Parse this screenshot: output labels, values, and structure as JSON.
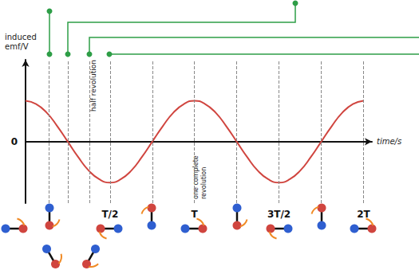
{
  "chart_data": {
    "type": "line",
    "x_label": "time/s",
    "y_label": "induced emf/V",
    "x": [
      0,
      0.0625,
      0.125,
      0.1875,
      0.25,
      0.3125,
      0.375,
      0.4375,
      0.5,
      0.5625,
      0.625,
      0.6875,
      0.75,
      0.8125,
      0.875,
      0.9375,
      1,
      1.0625,
      1.125,
      1.1875,
      1.25,
      1.3125,
      1.375,
      1.4375,
      1.5,
      1.5625,
      1.625,
      1.6875,
      1.75,
      1.8125,
      1.875,
      1.9375,
      2
    ],
    "values": [
      1,
      0.92,
      0.71,
      0.38,
      0,
      -0.38,
      -0.71,
      -0.92,
      -1,
      -0.92,
      -0.71,
      -0.38,
      0,
      0.38,
      0.71,
      0.92,
      1,
      0.92,
      0.71,
      0.38,
      0,
      -0.38,
      -0.71,
      -0.92,
      -1,
      -0.92,
      -0.71,
      -0.38,
      0,
      0.38,
      0.71,
      0.92,
      1
    ],
    "color": "#d0453f",
    "xlim": [
      0,
      2.05
    ],
    "xticks": [
      {
        "value": 0.5,
        "label": "T/2"
      },
      {
        "value": 1,
        "label": "T"
      },
      {
        "value": 1.5,
        "label": "3T/2"
      },
      {
        "value": 2,
        "label": "2T"
      }
    ],
    "ylim": [
      -1.5,
      2
    ],
    "yticks": [
      0
    ],
    "grid": false,
    "annotations": [
      "half revolution",
      "one complete revolution"
    ],
    "x_guides": [
      0.14,
      0.25,
      0.38,
      0.5,
      0.75,
      1,
      1.25,
      1.5,
      1.75,
      2
    ]
  }
}
